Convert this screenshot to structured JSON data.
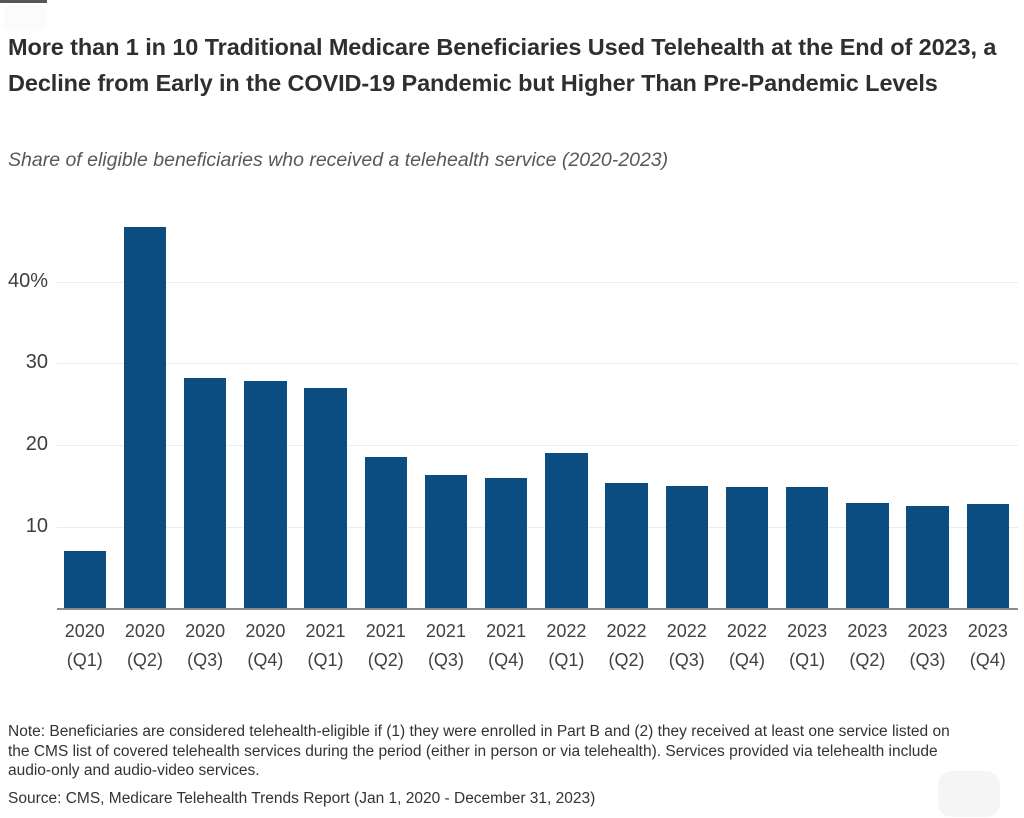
{
  "page": {
    "title": "More than 1 in 10 Traditional Medicare Beneficiaries Used Telehealth at the End of 2023, a Decline from Early in the COVID-19 Pandemic but Higher Than Pre-Pandemic Levels",
    "subtitle": "Share of eligible beneficiaries who received a telehealth service (2020-2023)",
    "note": "Note: Beneficiaries are considered telehealth-eligible if (1) they were enrolled in Part B and (2) they received at least one service listed on the CMS list of covered telehealth services during the period (either in person or via telehealth). Services provided via telehealth include audio-only and audio-video services.",
    "source": "Source: CMS, Medicare Telehealth Trends Report (Jan 1, 2020 - December 31, 2023)"
  },
  "chart_data": {
    "type": "bar",
    "title": "More than 1 in 10 Traditional Medicare Beneficiaries Used Telehealth at the End of 2023, a Decline from Early in the COVID-19 Pandemic but Higher Than Pre-Pandemic Levels",
    "subtitle": "Share of eligible beneficiaries who received a telehealth service (2020-2023)",
    "categories": [
      "2020 (Q1)",
      "2020 (Q2)",
      "2020 (Q3)",
      "2020 (Q4)",
      "2021 (Q1)",
      "2021 (Q2)",
      "2021 (Q3)",
      "2021 (Q4)",
      "2022 (Q1)",
      "2022 (Q2)",
      "2022 (Q3)",
      "2022 (Q4)",
      "2023 (Q1)",
      "2023 (Q2)",
      "2023 (Q3)",
      "2023 (Q4)"
    ],
    "values": [
      7,
      46.7,
      28.2,
      27.9,
      27,
      18.6,
      16.3,
      16,
      19,
      15.3,
      15,
      14.9,
      14.9,
      12.9,
      12.6,
      12.8
    ],
    "xlabel": "",
    "ylabel": "",
    "yticks": [
      10,
      20,
      30,
      40
    ],
    "ytick_labels": [
      "10",
      "20",
      "30",
      "40%"
    ],
    "ylim": [
      0,
      48
    ],
    "grid": true,
    "legend": "none",
    "bar_color": "#0b4d81",
    "gridline_color": "#ececec",
    "axis_line_color": "#8c8c8c"
  }
}
